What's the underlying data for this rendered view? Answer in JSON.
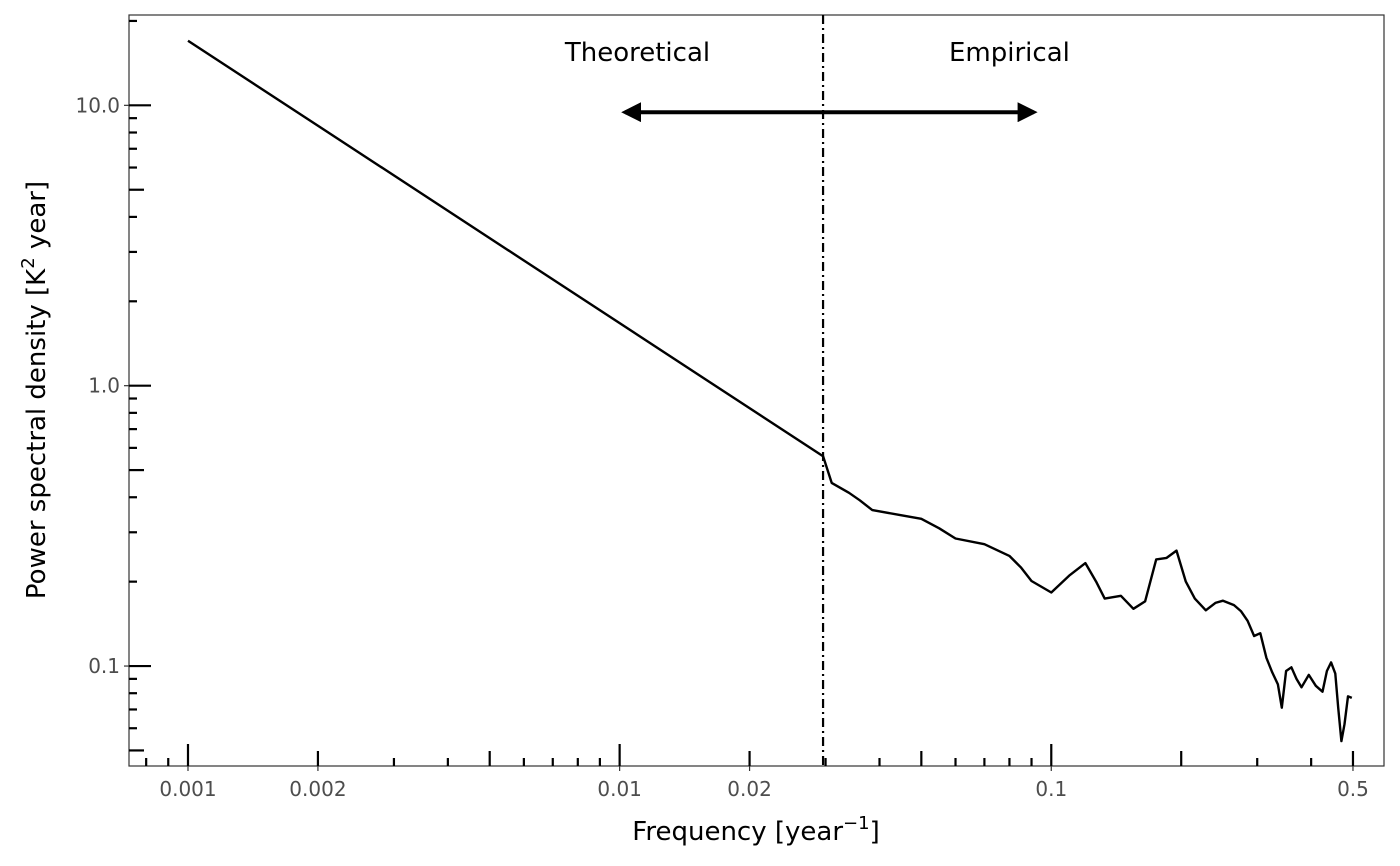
{
  "chart_data": {
    "type": "line",
    "xlabel": "Frequency [year",
    "xlabel_sup": "−1",
    "xlabel_end": "]",
    "ylabel": "Power spectral density [K",
    "ylabel_sup": "2",
    "ylabel_end": " year]",
    "xscale": "log",
    "yscale": "log",
    "xlim": [
      0.00073,
      0.59
    ],
    "ylim": [
      0.044,
      21
    ],
    "x_ticks": [
      {
        "value": 0.001,
        "label": "0.001"
      },
      {
        "value": 0.002,
        "label": "0.002"
      },
      {
        "value": 0.01,
        "label": "0.01"
      },
      {
        "value": 0.02,
        "label": "0.02"
      },
      {
        "value": 0.1,
        "label": "0.1"
      },
      {
        "value": 0.5,
        "label": "0.5"
      }
    ],
    "y_ticks": [
      {
        "value": 0.1,
        "label": "0.1"
      },
      {
        "value": 1.0,
        "label": "1.0"
      },
      {
        "value": 10.0,
        "label": "10.0"
      }
    ],
    "grid": false,
    "vline": {
      "x": 0.0296,
      "style": "dashdot"
    },
    "annotations": {
      "left_label": "Theoretical",
      "right_label": "Empirical",
      "left_label_x": 0.011,
      "right_label_x": 0.08,
      "label_y": 15.5,
      "arrow_y": 9.45,
      "arrow_x_start": 0.0103,
      "arrow_x_end": 0.091
    },
    "series": [
      {
        "points": [
          [
            0.001,
            17.0
          ],
          [
            0.0296,
            0.56
          ],
          [
            0.031,
            0.45
          ],
          [
            0.034,
            0.415
          ],
          [
            0.036,
            0.39
          ],
          [
            0.0385,
            0.36
          ],
          [
            0.045,
            0.345
          ],
          [
            0.05,
            0.335
          ],
          [
            0.055,
            0.31
          ],
          [
            0.06,
            0.285
          ],
          [
            0.07,
            0.272
          ],
          [
            0.08,
            0.247
          ],
          [
            0.085,
            0.225
          ],
          [
            0.09,
            0.201
          ],
          [
            0.1,
            0.183
          ],
          [
            0.11,
            0.21
          ],
          [
            0.12,
            0.233
          ],
          [
            0.127,
            0.2
          ],
          [
            0.133,
            0.174
          ],
          [
            0.145,
            0.178
          ],
          [
            0.155,
            0.16
          ],
          [
            0.165,
            0.17
          ],
          [
            0.175,
            0.24
          ],
          [
            0.185,
            0.243
          ],
          [
            0.195,
            0.258
          ],
          [
            0.205,
            0.2
          ],
          [
            0.215,
            0.174
          ],
          [
            0.228,
            0.158
          ],
          [
            0.24,
            0.168
          ],
          [
            0.25,
            0.171
          ],
          [
            0.265,
            0.165
          ],
          [
            0.275,
            0.157
          ],
          [
            0.285,
            0.145
          ],
          [
            0.295,
            0.128
          ],
          [
            0.305,
            0.131
          ],
          [
            0.315,
            0.107
          ],
          [
            0.325,
            0.095
          ],
          [
            0.335,
            0.086
          ],
          [
            0.342,
            0.071
          ],
          [
            0.35,
            0.096
          ],
          [
            0.36,
            0.099
          ],
          [
            0.37,
            0.09
          ],
          [
            0.38,
            0.084
          ],
          [
            0.395,
            0.093
          ],
          [
            0.41,
            0.085
          ],
          [
            0.425,
            0.081
          ],
          [
            0.435,
            0.096
          ],
          [
            0.445,
            0.103
          ],
          [
            0.455,
            0.094
          ],
          [
            0.462,
            0.071
          ],
          [
            0.47,
            0.054
          ],
          [
            0.478,
            0.062
          ],
          [
            0.487,
            0.078
          ],
          [
            0.497,
            0.077
          ]
        ]
      }
    ]
  }
}
